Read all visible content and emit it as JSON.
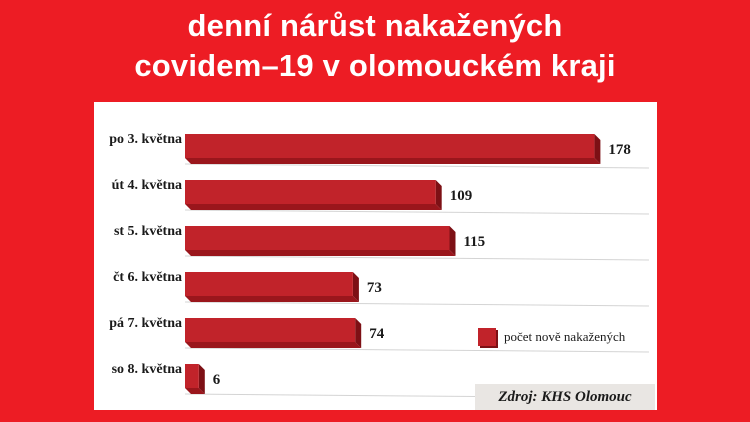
{
  "title_line1": "denní nárůst nakažených",
  "title_line2": "covidem–19 v olomouckém kraji",
  "chart_data": {
    "type": "bar",
    "orientation": "horizontal",
    "categories": [
      "po 3. května",
      "út 4. května",
      "st 5. května",
      "čt 6. května",
      "pá 7. května",
      "so 8. května"
    ],
    "values": [
      178,
      109,
      115,
      73,
      74,
      6
    ],
    "series": [
      {
        "name": "počet nově nakažených",
        "values": [
          178,
          109,
          115,
          73,
          74,
          6
        ]
      }
    ],
    "legend_position": "bottom-right"
  },
  "legend_label": "počet nově nakažených",
  "source": "Zdroj: KHS Olomouc",
  "colors": {
    "background": "#ed1c24",
    "bar": "#c1232a",
    "bar_shadow": "#7d1015"
  }
}
